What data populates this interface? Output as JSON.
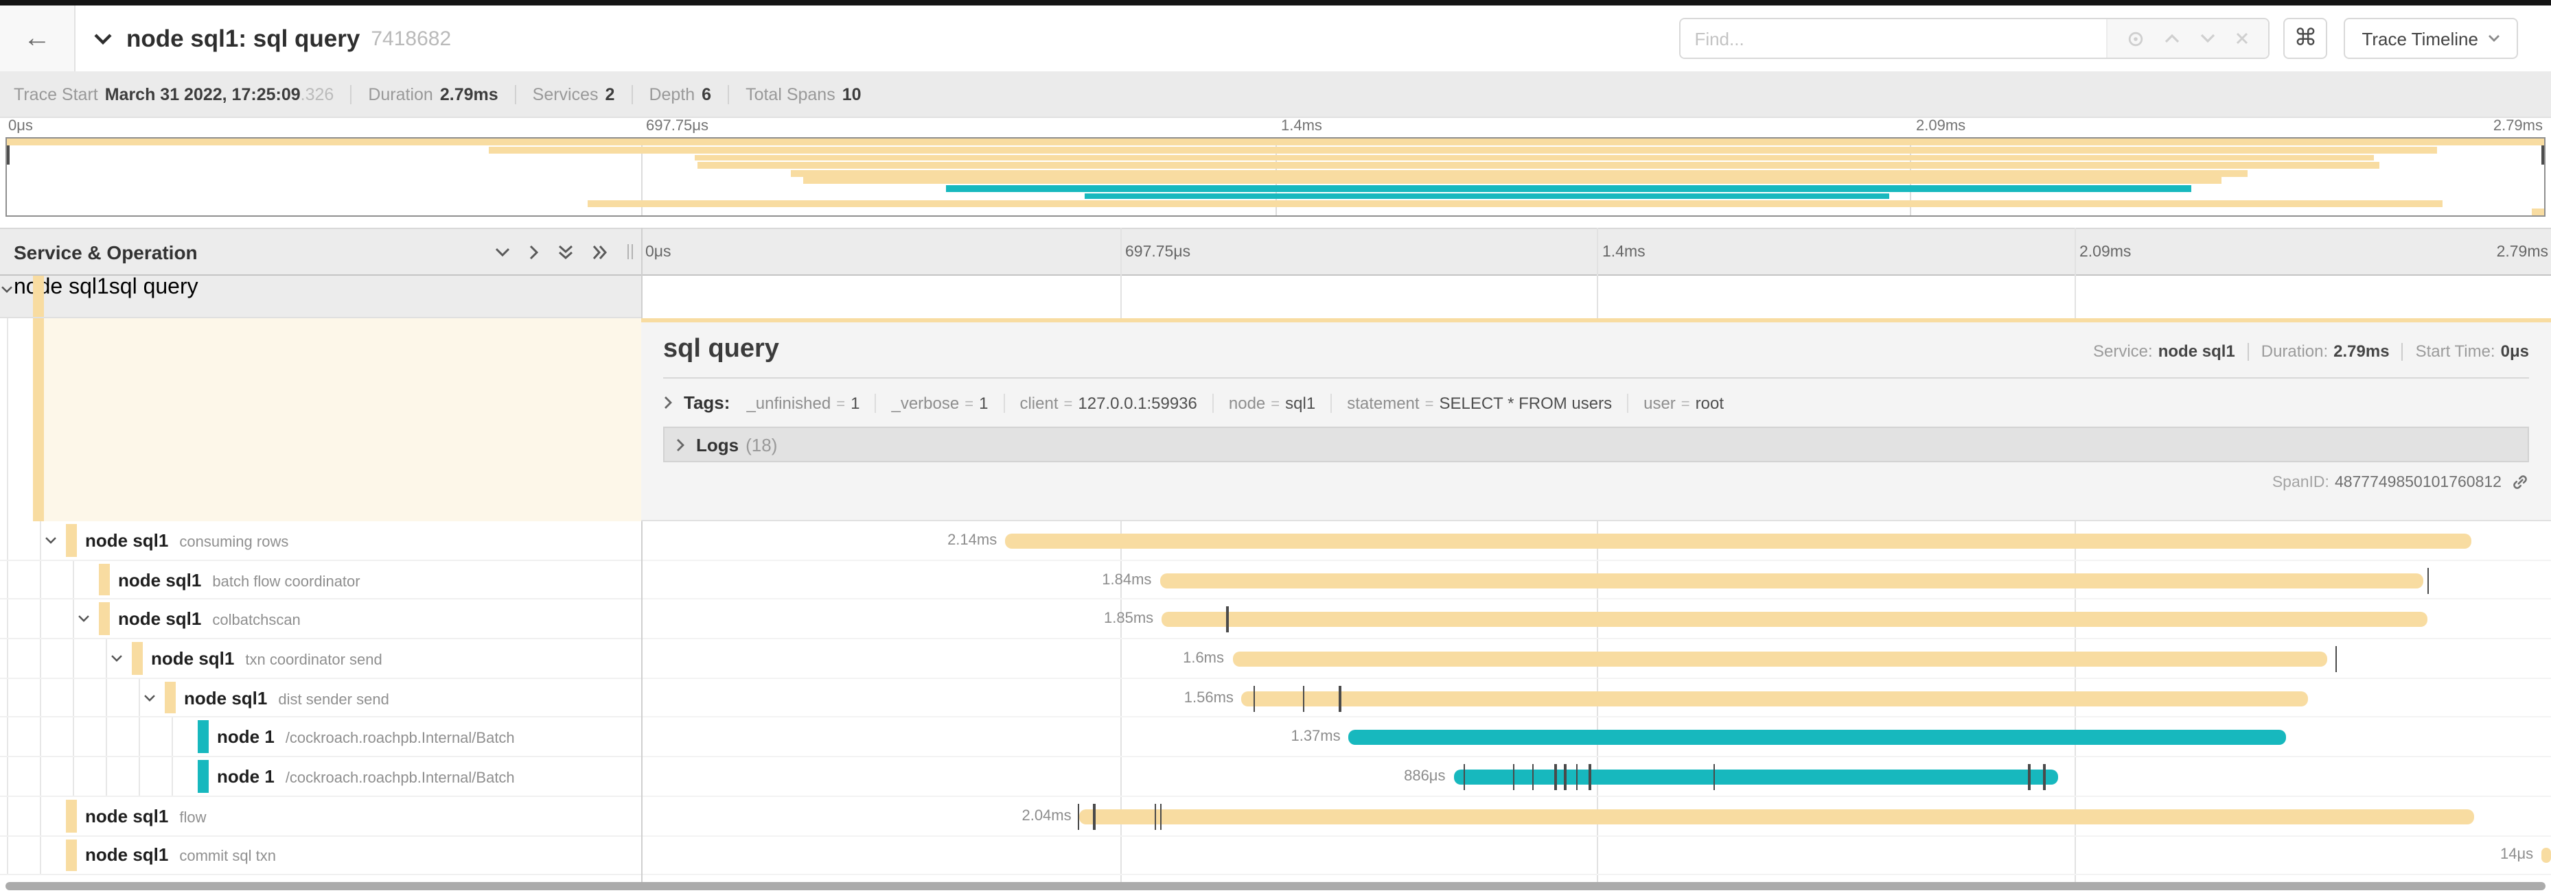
{
  "header": {
    "back": "←",
    "title": "node sql1: sql query",
    "trace_id": "7418682",
    "find_placeholder": "Find...",
    "shortcut_key": "⌘",
    "view_button": "Trace Timeline"
  },
  "metadata": [
    {
      "label": "Trace Start",
      "value": "March 31 2022, 17:25:09",
      "suffix": ".326"
    },
    {
      "label": "Duration",
      "value": "2.79ms"
    },
    {
      "label": "Services",
      "value": "2"
    },
    {
      "label": "Depth",
      "value": "6"
    },
    {
      "label": "Total Spans",
      "value": "10"
    }
  ],
  "ruler_ticks": [
    {
      "label": "0μs",
      "pct": 0
    },
    {
      "label": "697.75μs",
      "pct": 25
    },
    {
      "label": "1.4ms",
      "pct": 50
    },
    {
      "label": "2.09ms",
      "pct": 75
    },
    {
      "label": "2.79ms",
      "pct": 100,
      "align": "right"
    }
  ],
  "tree_header": "Service & Operation",
  "colors": {
    "tan": "#F8DCA1",
    "teal": "#17B8BE",
    "cream": "#fdf7e9",
    "tick": "#4a4a4a"
  },
  "spans": [
    {
      "service": "node sql1",
      "operation": "sql query",
      "depth": 0,
      "children": true,
      "color": "tan",
      "start": 0,
      "end": 100,
      "label": "",
      "selected": true,
      "ticks": [
        1,
        2.6,
        4.8,
        6.2,
        6.5,
        6.9,
        13,
        16.2,
        16.8,
        17.2,
        17.6,
        17.9,
        20.5,
        21.2,
        24,
        97.9,
        98.4
      ]
    },
    {
      "service": "node sql1",
      "operation": "consuming rows",
      "depth": 1,
      "children": true,
      "color": "tan",
      "start": 19,
      "end": 95.8,
      "label": "2.14ms",
      "ticks": []
    },
    {
      "service": "node sql1",
      "operation": "batch flow coordinator",
      "depth": 2,
      "children": false,
      "color": "tan",
      "start": 27.1,
      "end": 93.3,
      "label": "1.84ms",
      "ticks": [
        93.5
      ]
    },
    {
      "service": "node sql1",
      "operation": "colbatchscan",
      "depth": 2,
      "children": true,
      "color": "tan",
      "start": 27.2,
      "end": 93.5,
      "label": "1.85ms",
      "ticks": [
        30.6
      ]
    },
    {
      "service": "node sql1",
      "operation": "txn coordinator send",
      "depth": 3,
      "children": true,
      "color": "tan",
      "start": 30.9,
      "end": 88.3,
      "label": "1.6ms",
      "ticks": [
        88.7
      ]
    },
    {
      "service": "node sql1",
      "operation": "dist sender send",
      "depth": 4,
      "children": true,
      "color": "tan",
      "start": 31.4,
      "end": 87.3,
      "label": "1.56ms",
      "ticks": [
        32,
        34.6,
        36.5
      ]
    },
    {
      "service": "node 1",
      "operation": "/cockroach.roachpb.Internal/Batch",
      "depth": 5,
      "children": false,
      "color": "teal",
      "start": 37,
      "end": 86.1,
      "label": "1.37ms",
      "ticks": []
    },
    {
      "service": "node 1",
      "operation": "/cockroach.roachpb.Internal/Batch",
      "depth": 5,
      "children": false,
      "color": "teal",
      "start": 42.5,
      "end": 74.2,
      "label": "886μs",
      "ticks": [
        43,
        45.6,
        46.6,
        47.8,
        48.3,
        48.9,
        49.6,
        56.1,
        72.6,
        73.4
      ]
    },
    {
      "service": "node sql1",
      "operation": "flow",
      "depth": 1,
      "children": false,
      "color": "tan",
      "start": 22.9,
      "end": 96,
      "label": "2.04ms",
      "ticks": [
        22.8,
        23.6,
        26.8,
        27.1
      ]
    },
    {
      "service": "node sql1",
      "operation": "commit sql txn",
      "depth": 1,
      "children": false,
      "color": "tan",
      "start": 99.5,
      "end": 100,
      "label": "14μs",
      "ticks": []
    }
  ],
  "detail": {
    "title": "sql query",
    "fields": [
      {
        "label": "Service:",
        "value": "node sql1"
      },
      {
        "label": "Duration:",
        "value": "2.79ms"
      },
      {
        "label": "Start Time:",
        "value": "0μs"
      }
    ],
    "tags_label": "Tags:",
    "tags": [
      {
        "key": "_unfinished",
        "value": "1"
      },
      {
        "key": "_verbose",
        "value": "1"
      },
      {
        "key": "client",
        "value": "127.0.0.1:59936"
      },
      {
        "key": "node",
        "value": "sql1"
      },
      {
        "key": "statement",
        "value": "SELECT * FROM users"
      },
      {
        "key": "user",
        "value": "root"
      }
    ],
    "logs_label": "Logs",
    "logs_count": "(18)",
    "span_id_label": "SpanID:",
    "span_id": "4877749850101760812"
  }
}
